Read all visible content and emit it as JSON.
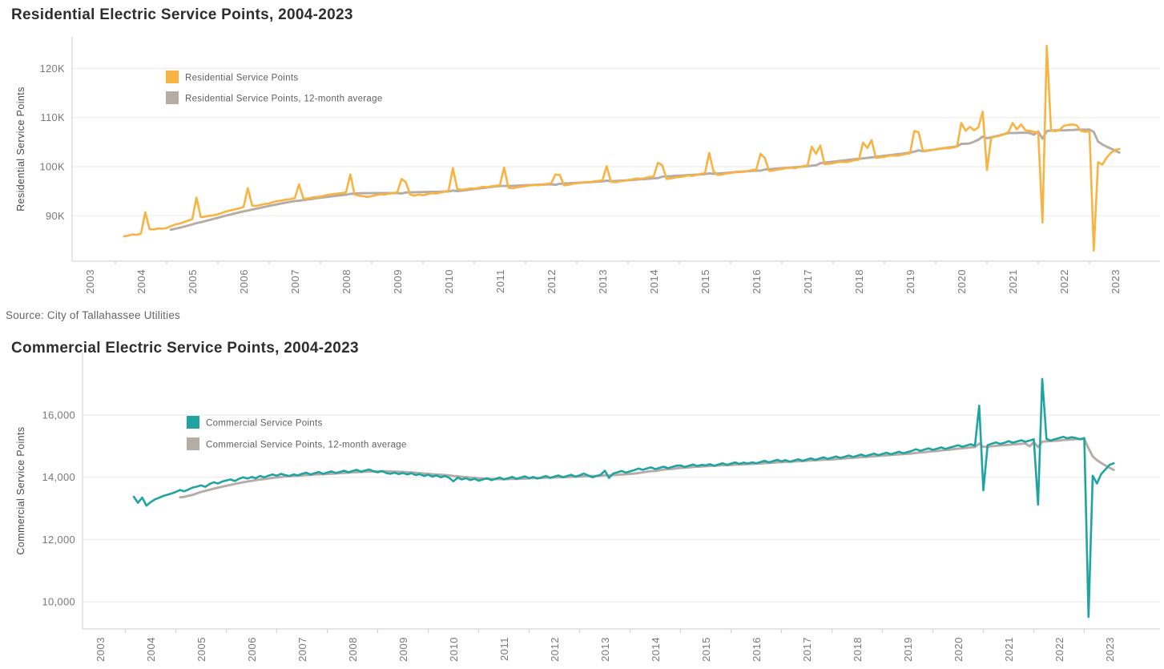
{
  "source_note": "Source: City of Tallahassee Utilities",
  "chart_data": [
    {
      "type": "line",
      "title": "Residential Electric Service Points, 2004-2023",
      "xlabel": "",
      "ylabel": "Residential Service Points",
      "x_start": "2003-09",
      "x_interval": "month",
      "x_tick_labels": [
        "2003",
        "2004",
        "2005",
        "2006",
        "2007",
        "2008",
        "2009",
        "2010",
        "2011",
        "2012",
        "2013",
        "2014",
        "2015",
        "2016",
        "2017",
        "2018",
        "2019",
        "2020",
        "2021",
        "2022",
        "2023"
      ],
      "y_ticks": [
        {
          "value": 90000,
          "label": "90K"
        },
        {
          "value": 100000,
          "label": "100K"
        },
        {
          "value": 110000,
          "label": "110K"
        },
        {
          "value": 120000,
          "label": "120K"
        }
      ],
      "xlim": [
        2003,
        2024
      ],
      "ylim": [
        81000,
        126300
      ],
      "grid": true,
      "legend_position": "top-left-inside",
      "series": [
        {
          "name": "Residential Service Points",
          "color": "#F9B342",
          "values": [
            85800,
            85950,
            86200,
            86100,
            86400,
            90700,
            87300,
            87200,
            87400,
            87350,
            87500,
            87900,
            88200,
            88400,
            88700,
            89000,
            89300,
            93700,
            89700,
            89800,
            90000,
            90100,
            90300,
            90600,
            90900,
            91100,
            91300,
            91500,
            91800,
            95600,
            92100,
            92000,
            92200,
            92400,
            92500,
            92800,
            93000,
            93100,
            93300,
            93400,
            93600,
            96400,
            93500,
            93500,
            93700,
            93800,
            93900,
            94100,
            94300,
            94400,
            94500,
            94600,
            94800,
            98400,
            94300,
            94100,
            94000,
            93800,
            94000,
            94200,
            94400,
            94300,
            94500,
            94600,
            94800,
            97500,
            96800,
            94300,
            94100,
            94300,
            94200,
            94400,
            94600,
            94500,
            94700,
            94900,
            95100,
            99700,
            95500,
            95300,
            95400,
            95600,
            95500,
            95700,
            95900,
            95800,
            96000,
            96100,
            96200,
            99800,
            95700,
            95600,
            95800,
            95900,
            96000,
            96200,
            96300,
            96200,
            96400,
            96500,
            96600,
            98400,
            98300,
            96200,
            96300,
            96500,
            96600,
            96700,
            96900,
            96800,
            97000,
            97100,
            97200,
            100100,
            96900,
            96800,
            97000,
            97100,
            97300,
            97400,
            97600,
            97500,
            97700,
            97900,
            98000,
            100800,
            100300,
            97500,
            97600,
            97800,
            97900,
            98000,
            98200,
            98100,
            98300,
            98500,
            98700,
            102800,
            99000,
            98300,
            98400,
            98600,
            98700,
            98900,
            99000,
            98900,
            99100,
            99300,
            99400,
            102600,
            101800,
            99100,
            99200,
            99400,
            99500,
            99700,
            99800,
            99700,
            99900,
            100100,
            100200,
            104100,
            102600,
            104300,
            100500,
            100600,
            100700,
            100900,
            101000,
            100900,
            101100,
            101300,
            101400,
            104900,
            103800,
            105400,
            101800,
            101900,
            102000,
            102200,
            102300,
            102200,
            102400,
            102600,
            102700,
            107300,
            107000,
            103300,
            103200,
            103400,
            103500,
            103700,
            103800,
            103700,
            103900,
            104100,
            108900,
            107300,
            108100,
            107400,
            108000,
            111200,
            99300,
            105900,
            106100,
            106300,
            106600,
            107000,
            108900,
            107600,
            108600,
            107400,
            107300,
            107100,
            106900,
            88600,
            124600,
            107400,
            107200,
            107500,
            108300,
            108500,
            108600,
            108400,
            107300,
            107100,
            107200,
            82900,
            100900,
            100400,
            101800,
            102800,
            103400,
            103600
          ]
        },
        {
          "name": "Residential Service Points, 12-month average",
          "color": "#B4ACA5",
          "derived": "12-month rolling mean of series 0"
        }
      ]
    },
    {
      "type": "line",
      "title": "Commercial Electric Service Points, 2004-2023",
      "xlabel": "",
      "ylabel": "Commercial Service Points",
      "x_start": "2003-09",
      "x_interval": "month",
      "x_tick_labels": [
        "2003",
        "2004",
        "2005",
        "2006",
        "2007",
        "2008",
        "2009",
        "2010",
        "2011",
        "2012",
        "2013",
        "2014",
        "2015",
        "2016",
        "2017",
        "2018",
        "2019",
        "2020",
        "2021",
        "2022",
        "2023"
      ],
      "y_ticks": [
        {
          "value": 10000,
          "label": "10,000"
        },
        {
          "value": 12000,
          "label": "12,000"
        },
        {
          "value": 14000,
          "label": "14,000"
        },
        {
          "value": 16000,
          "label": "16,000"
        }
      ],
      "xlim": [
        2003,
        2024
      ],
      "ylim": [
        9100,
        18000
      ],
      "grid": true,
      "legend_position": "top-left-inside",
      "series": [
        {
          "name": "Commercial Service Points",
          "color": "#20A4A1",
          "values": [
            13375,
            13180,
            13350,
            13090,
            13200,
            13290,
            13340,
            13400,
            13440,
            13480,
            13530,
            13590,
            13550,
            13610,
            13670,
            13700,
            13740,
            13690,
            13780,
            13840,
            13800,
            13860,
            13900,
            13930,
            13880,
            13950,
            14000,
            13960,
            14010,
            13970,
            14040,
            14000,
            14050,
            14090,
            14050,
            14110,
            14070,
            14040,
            14090,
            14060,
            14110,
            14150,
            14090,
            14130,
            14170,
            14110,
            14150,
            14190,
            14140,
            14170,
            14210,
            14160,
            14200,
            14240,
            14180,
            14220,
            14250,
            14190,
            14160,
            14200,
            14140,
            14110,
            14150,
            14100,
            14140,
            14090,
            14130,
            14070,
            14100,
            14040,
            14080,
            14020,
            14060,
            14000,
            14040,
            13980,
            13870,
            13990,
            13930,
            13970,
            13910,
            13950,
            13890,
            13930,
            13970,
            13910,
            13950,
            13990,
            13930,
            13970,
            14010,
            13950,
            13990,
            14030,
            13970,
            14010,
            13960,
            14000,
            14040,
            13980,
            14020,
            14060,
            14000,
            14040,
            14080,
            14020,
            14060,
            14120,
            14060,
            14000,
            14040,
            14080,
            14210,
            13980,
            14120,
            14160,
            14200,
            14150,
            14190,
            14230,
            14280,
            14240,
            14280,
            14320,
            14260,
            14300,
            14340,
            14290,
            14330,
            14370,
            14380,
            14330,
            14370,
            14410,
            14360,
            14400,
            14380,
            14420,
            14370,
            14410,
            14450,
            14400,
            14440,
            14480,
            14430,
            14470,
            14440,
            14480,
            14450,
            14490,
            14530,
            14480,
            14520,
            14560,
            14510,
            14550,
            14500,
            14540,
            14580,
            14530,
            14570,
            14610,
            14560,
            14600,
            14640,
            14590,
            14630,
            14670,
            14620,
            14660,
            14700,
            14650,
            14690,
            14730,
            14680,
            14720,
            14760,
            14710,
            14750,
            14790,
            14740,
            14780,
            14820,
            14770,
            14810,
            14850,
            14900,
            14850,
            14890,
            14930,
            14880,
            14920,
            14960,
            14910,
            14950,
            14990,
            15030,
            14980,
            15020,
            15060,
            15010,
            16300,
            13580,
            15030,
            15080,
            15120,
            15070,
            15110,
            15160,
            15110,
            15150,
            15190,
            15140,
            15180,
            15220,
            13120,
            17160,
            15230,
            15180,
            15220,
            15260,
            15300,
            15250,
            15290,
            15260,
            15220,
            15260,
            9510,
            14050,
            13800,
            14100,
            14250,
            14400,
            14450
          ]
        },
        {
          "name": "Commercial Service Points, 12-month average",
          "color": "#B4ACA5",
          "derived": "12-month rolling mean of series 0"
        }
      ]
    }
  ]
}
